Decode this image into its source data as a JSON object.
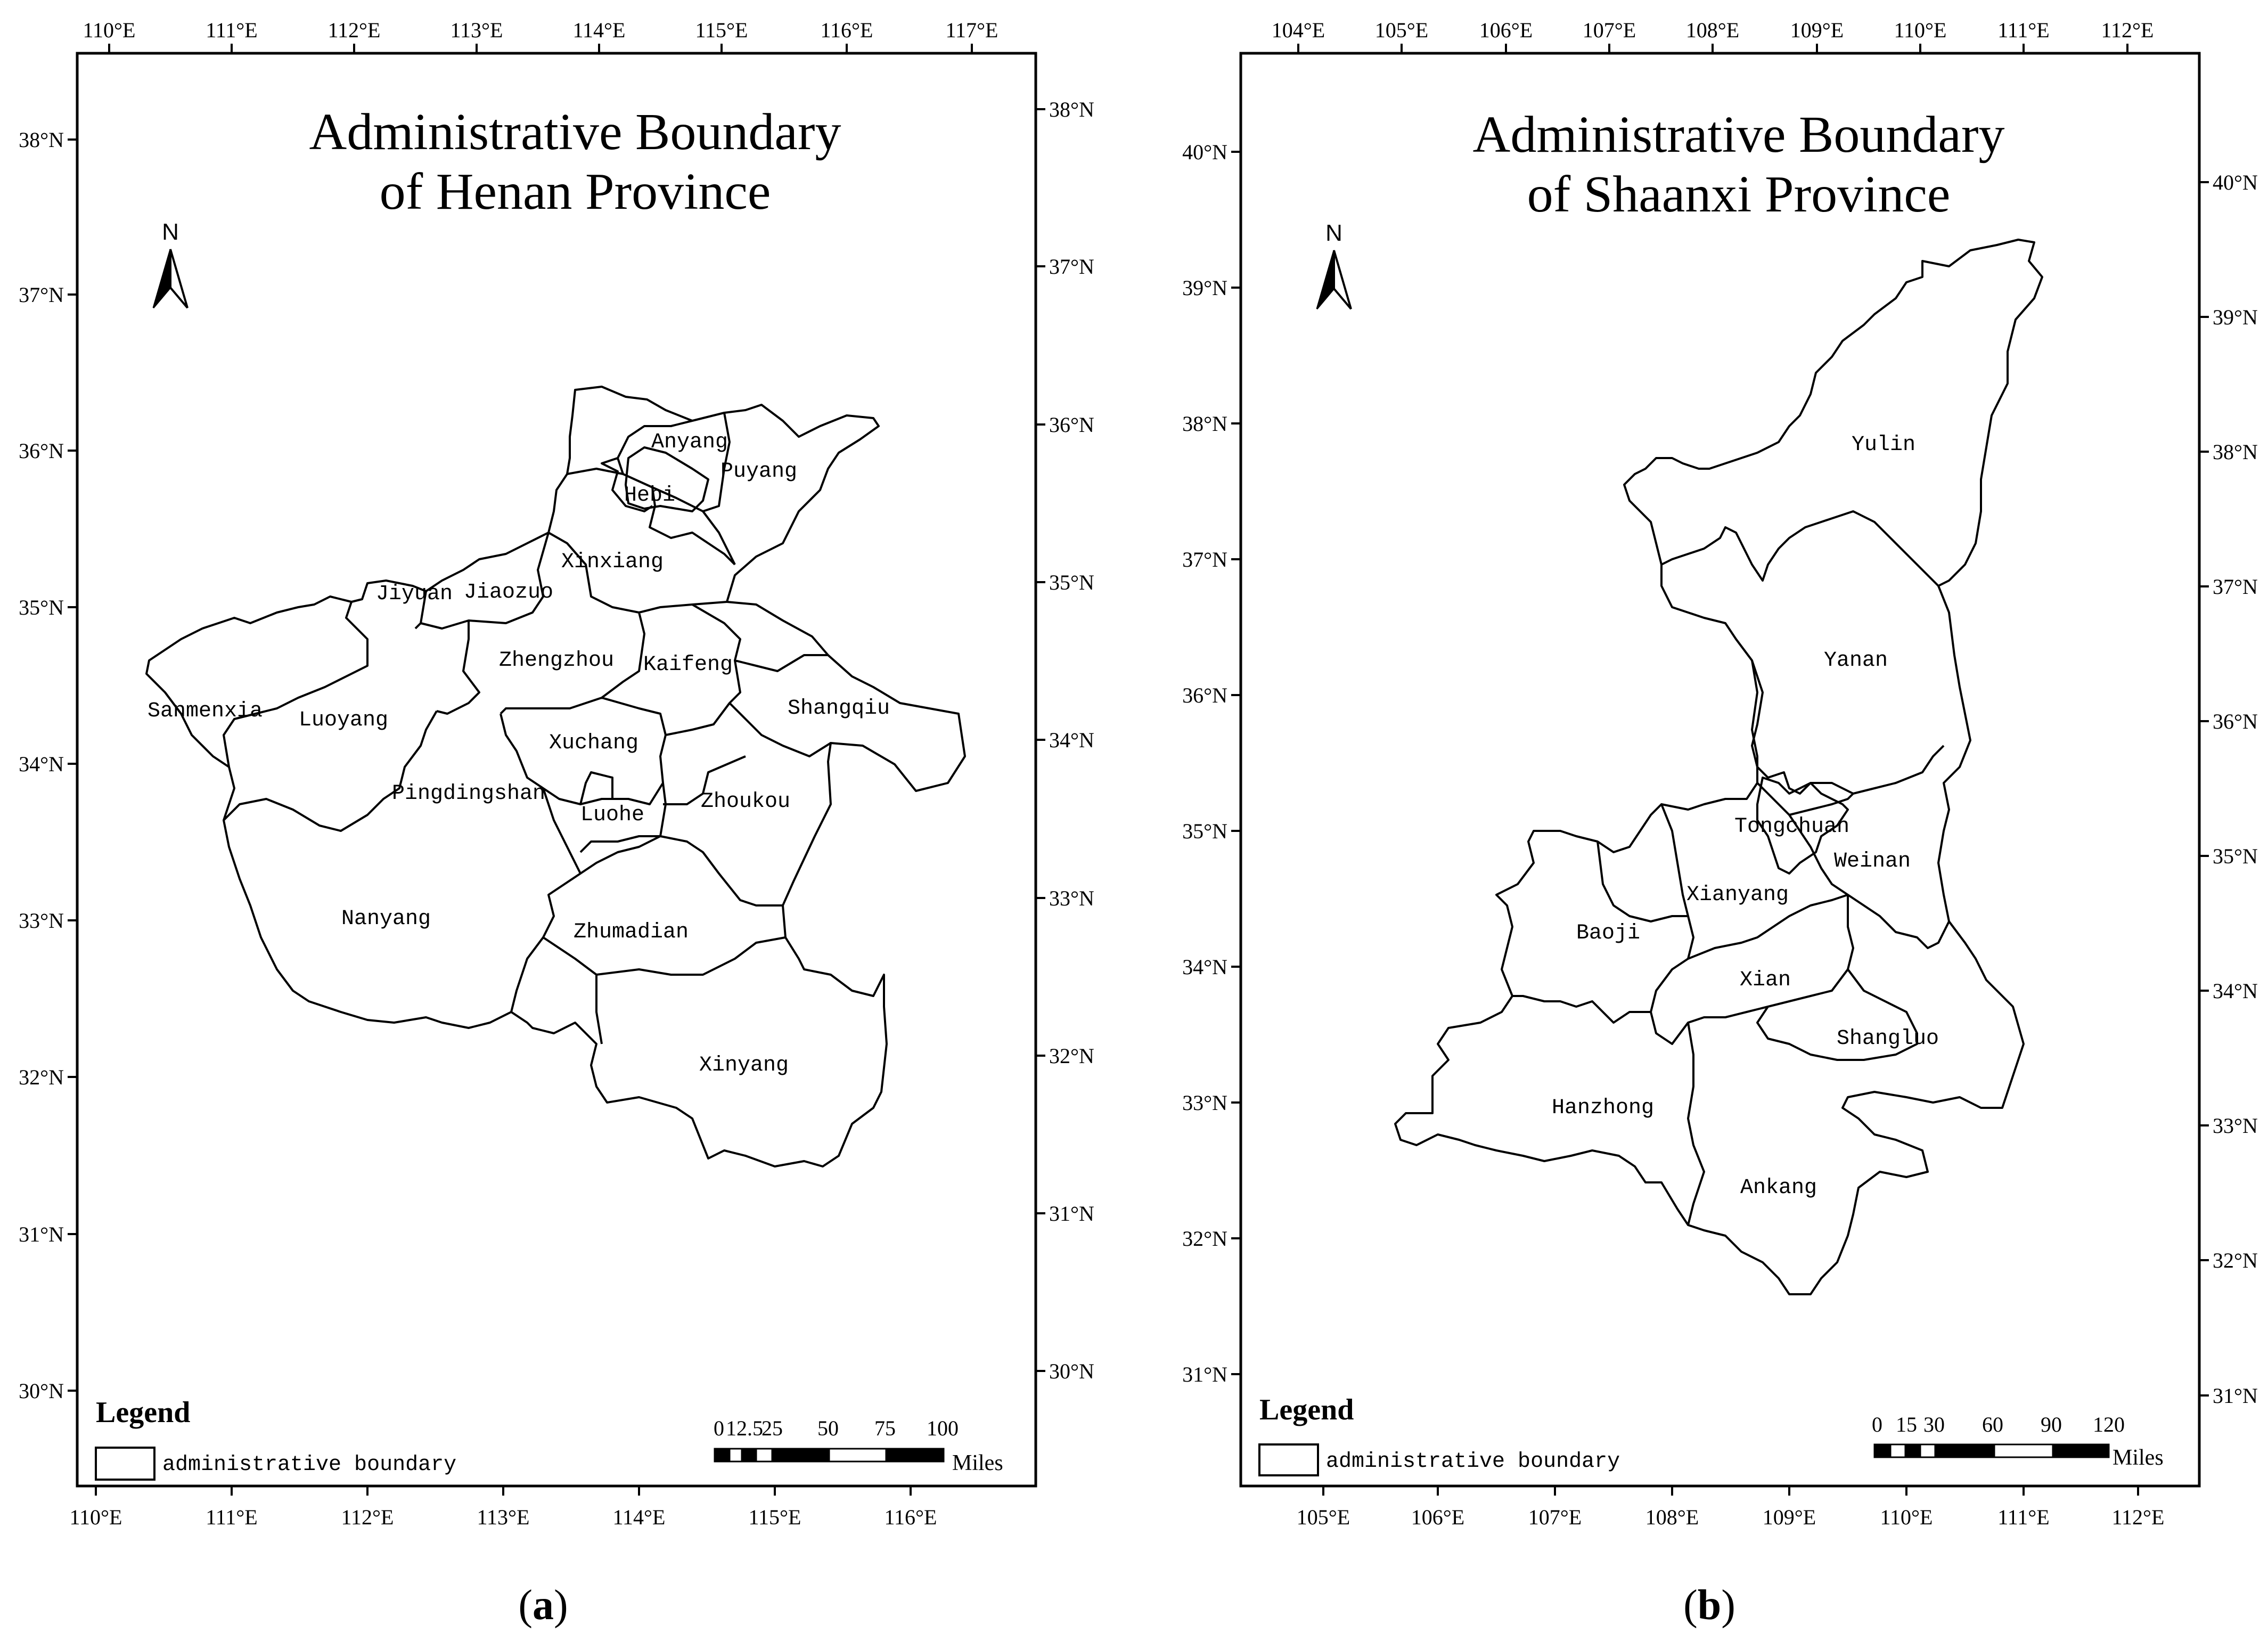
{
  "maps": [
    {
      "id": "henan",
      "title_line1": "Administrative Boundary",
      "title_line2": "of Henan Province",
      "north_label": "N",
      "legend_title": "Legend",
      "legend_item": "administrative boundary",
      "scale_labels": [
        "0",
        "12.5",
        "25",
        "50",
        "75",
        "100"
      ],
      "scale_unit": "Miles",
      "lon_top": [
        "110°E",
        "111°E",
        "112°E",
        "113°E",
        "114°E",
        "115°E",
        "116°E",
        "117°E"
      ],
      "lon_bottom": [
        "110°E",
        "111°E",
        "112°E",
        "113°E",
        "114°E",
        "115°E",
        "116°E"
      ],
      "lat_left": [
        "38°N",
        "37°N",
        "36°N",
        "35°N",
        "34°N",
        "33°N",
        "32°N",
        "31°N",
        "30°N"
      ],
      "lat_right": [
        "38°N",
        "37°N",
        "36°N",
        "35°N",
        "34°N",
        "33°N",
        "32°N",
        "31°N",
        "30°N"
      ],
      "regions": [
        "Anyang",
        "Puyang",
        "Hebi",
        "Xinxiang",
        "Jiyuan",
        "Jiaozuo",
        "Zhengzhou",
        "Kaifeng",
        "Sanmenxia",
        "Luoyang",
        "Shangqiu",
        "Xuchang",
        "Pingdingshan",
        "Luohe",
        "Zhoukou",
        "Nanyang",
        "Zhumadian",
        "Xinyang"
      ],
      "caption": "a"
    },
    {
      "id": "shaanxi",
      "title_line1": "Administrative Boundary",
      "title_line2": "of Shaanxi Province",
      "north_label": "N",
      "legend_title": "Legend",
      "legend_item": "administrative boundary",
      "scale_labels": [
        "0",
        "15",
        "30",
        "60",
        "90",
        "120"
      ],
      "scale_unit": "Miles",
      "lon_top": [
        "104°E",
        "105°E",
        "106°E",
        "107°E",
        "108°E",
        "109°E",
        "110°E",
        "111°E",
        "112°E"
      ],
      "lon_bottom": [
        "105°E",
        "106°E",
        "107°E",
        "108°E",
        "109°E",
        "110°E",
        "111°E",
        "112°E"
      ],
      "lat_left": [
        "40°N",
        "39°N",
        "38°N",
        "37°N",
        "36°N",
        "35°N",
        "34°N",
        "33°N",
        "32°N",
        "31°N"
      ],
      "lat_right": [
        "40°N",
        "39°N",
        "38°N",
        "37°N",
        "36°N",
        "35°N",
        "34°N",
        "33°N",
        "32°N",
        "31°N"
      ],
      "regions": [
        "Yulin",
        "Yanan",
        "Tongchuan",
        "Weinan",
        "Xianyang",
        "Baoji",
        "Xian",
        "Shangluo",
        "Hanzhong",
        "Ankang"
      ],
      "caption": "b"
    }
  ]
}
